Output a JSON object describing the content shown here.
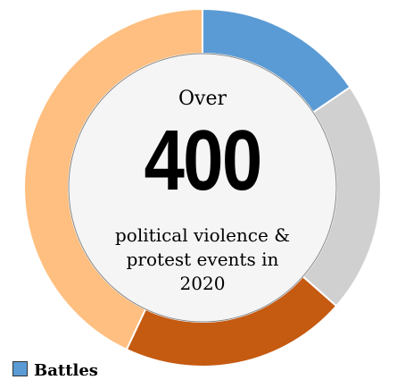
{
  "center": {
    "over": "Over",
    "count": "400",
    "subtitle_lines": [
      "political violence &",
      "protest events in",
      "2020"
    ]
  },
  "chart_data": {
    "type": "pie",
    "donut": true,
    "slices": [
      {
        "name": "Battles",
        "share": 0.155,
        "color": "#5b9bd5"
      },
      {
        "name": "",
        "share": 0.21,
        "color": "#d0d0d0"
      },
      {
        "name": "",
        "share": 0.205,
        "color": "#c55a11"
      },
      {
        "name": "",
        "share": 0.43,
        "color": "#ffbf80"
      }
    ],
    "legend": [
      {
        "label": "Battles",
        "color": "#5b9bd5"
      }
    ],
    "start_angle_deg": 0
  }
}
